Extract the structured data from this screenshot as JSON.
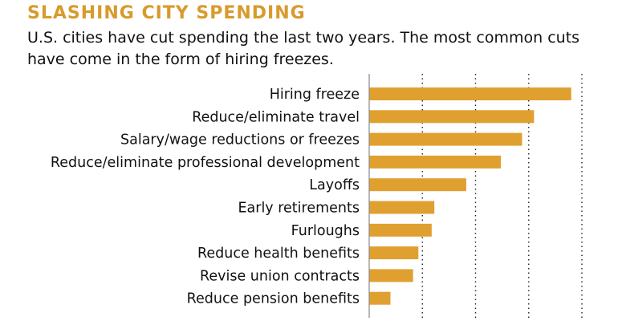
{
  "header": {
    "title": "SLASHING CITY SPENDING",
    "subtitle": "U.S. cities have cut spending the last two years. The most common cuts have come in the form of hiring freezes."
  },
  "colors": {
    "title": "#d89a2c",
    "bar": "#e0a030",
    "text": "#111111",
    "axis": "#888888",
    "grid": "#222222"
  },
  "chart_data": {
    "type": "bar",
    "orientation": "horizontal",
    "title": "SLASHING CITY SPENDING",
    "categories": [
      "Hiring freeze",
      "Reduce/eliminate travel",
      "Salary/wage reductions or freezes",
      "Reduce/eliminate professional development",
      "Layoffs",
      "Early retirements",
      "Furloughs",
      "Reduce health benefits",
      "Revise union contracts",
      "Reduce pension benefits"
    ],
    "values": [
      76,
      62,
      57.5,
      49.5,
      36.5,
      24.5,
      23.5,
      18.5,
      16.5,
      8
    ],
    "xlim": [
      0,
      80
    ],
    "gridlines": [
      20,
      40,
      60,
      80
    ],
    "grid": true,
    "grid_style": "dotted",
    "legend": "none"
  }
}
